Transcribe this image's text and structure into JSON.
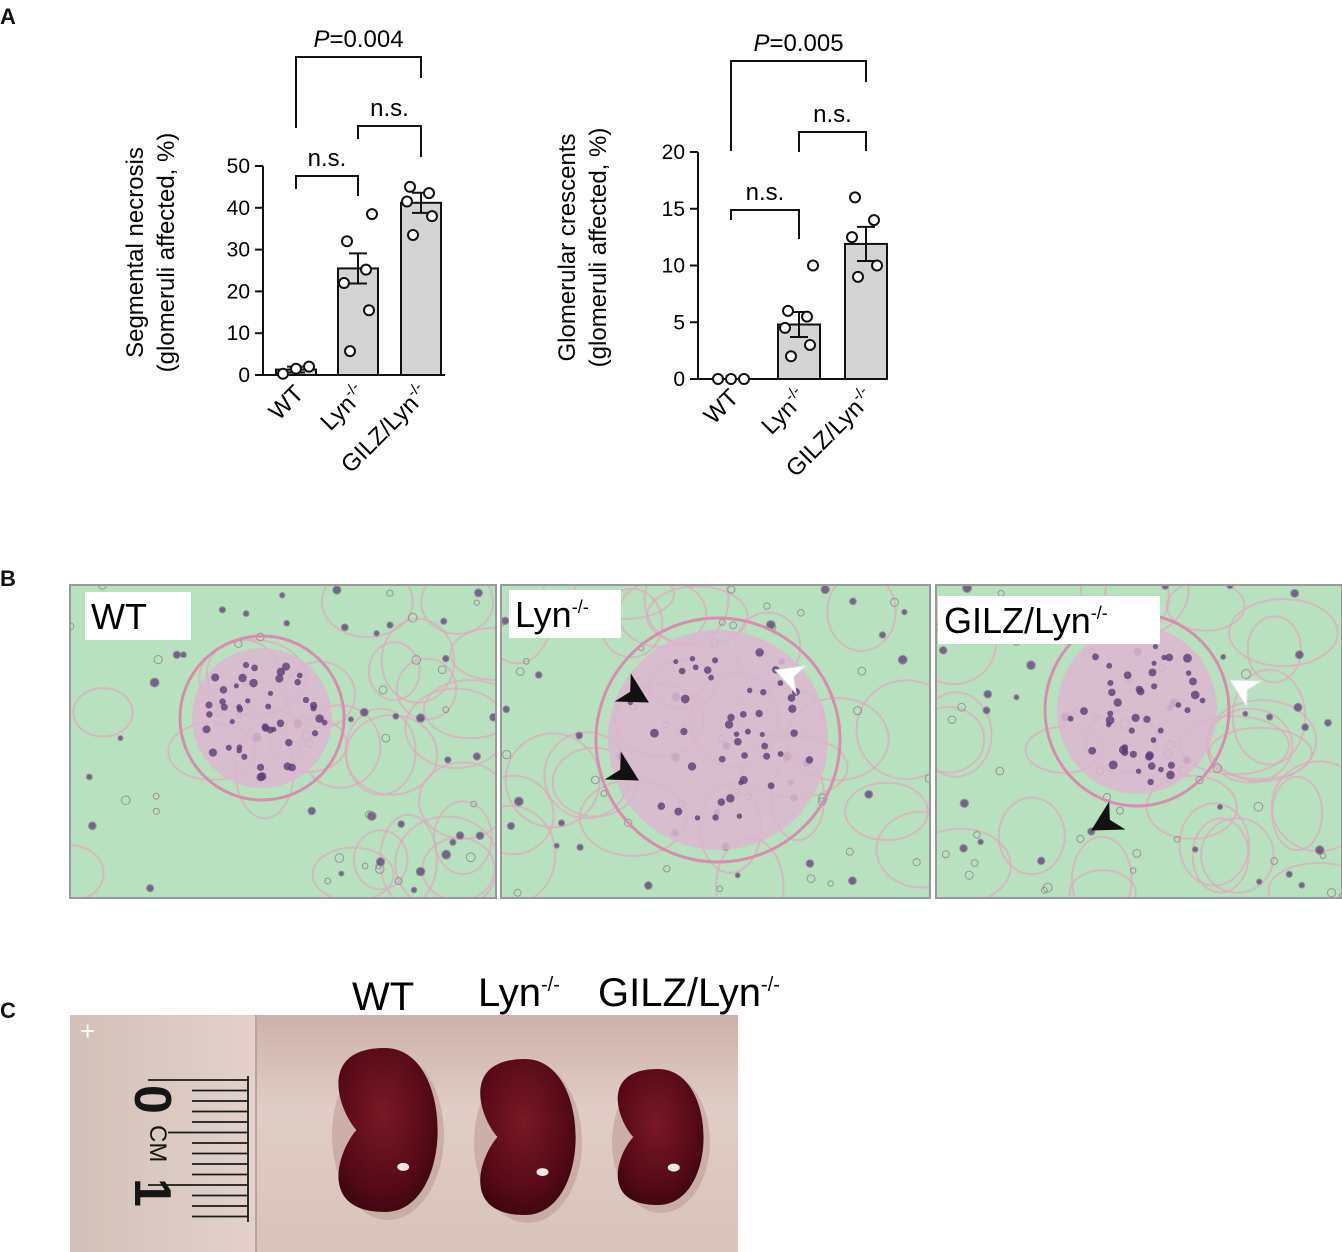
{
  "panels": {
    "a_label": "A",
    "b_label": "B",
    "c_label": "C"
  },
  "chart_data": [
    {
      "type": "bar",
      "categories": [
        "WT",
        "Lyn-/-",
        "GILZ/Lyn-/-"
      ],
      "values": [
        1.3,
        25.5,
        41.2
      ],
      "sem": [
        0.7,
        3.6,
        2.4
      ],
      "points": [
        [
          0.3,
          1.5,
          2.0
        ],
        [
          5.7,
          15.5,
          22.0,
          25.2,
          32.0,
          38.5
        ],
        [
          33.5,
          38.0,
          41.5,
          43.5,
          45.0
        ]
      ],
      "ylabel_line1": "Segmental necrosis",
      "ylabel_line2": "(glomeruli affected, %)",
      "ylim": [
        0,
        50
      ],
      "yticks": [
        "0",
        "10",
        "20",
        "30",
        "40",
        "50"
      ],
      "tick_values": [
        0,
        10,
        20,
        30,
        40,
        50
      ],
      "comparisons": [
        {
          "from": 0,
          "to": 2,
          "p_prefix": "P",
          "p_value": "=0.004"
        },
        {
          "from": 0,
          "to": 1,
          "text": "n.s."
        },
        {
          "from": 1,
          "to": 2,
          "text": "n.s."
        }
      ]
    },
    {
      "type": "bar",
      "categories": [
        "WT",
        "Lyn-/-",
        "GILZ/Lyn-/-"
      ],
      "values": [
        0,
        4.8,
        11.9
      ],
      "sem": [
        0,
        1.1,
        1.5
      ],
      "points": [
        [
          0,
          0,
          0
        ],
        [
          2.0,
          3.0,
          4.5,
          5.5,
          6.0,
          10.0
        ],
        [
          9.0,
          10.0,
          12.5,
          14.0,
          16.0
        ]
      ],
      "ylabel_line1": "Glomerular crescents",
      "ylabel_line2": "(glomeruli affected, %)",
      "ylim": [
        0,
        20
      ],
      "yticks": [
        "0",
        "5",
        "10",
        "15",
        "20"
      ],
      "tick_values": [
        0,
        5,
        10,
        15,
        20
      ],
      "comparisons": [
        {
          "from": 0,
          "to": 2,
          "p_prefix": "P",
          "p_value": "=0.005"
        },
        {
          "from": 0,
          "to": 1,
          "text": "n.s."
        },
        {
          "from": 1,
          "to": 2,
          "text": "n.s."
        }
      ]
    }
  ],
  "histology": [
    {
      "label": "WT",
      "sup": ""
    },
    {
      "label": "Lyn",
      "sup": "-/-"
    },
    {
      "label": "GILZ/Lyn",
      "sup": "-/-"
    }
  ],
  "kidney_photo": {
    "labels": [
      {
        "label": "WT",
        "sup": ""
      },
      {
        "label": "Lyn",
        "sup": "-/-"
      },
      {
        "label": "GILZ/Lyn",
        "sup": "-/-"
      }
    ],
    "ruler_text": "0",
    "ruler_unit": "CM",
    "ruler_one": "1"
  },
  "colors": {
    "bar_fill": "#d4d4d4",
    "stroke": "#111111",
    "tissue_base": "#b8e2bf",
    "tissue_pink": "#e2a6c0",
    "nucleus": "#5b3c78",
    "kidney": "#5a0b18",
    "photo_bg": "#dcc7c0"
  }
}
